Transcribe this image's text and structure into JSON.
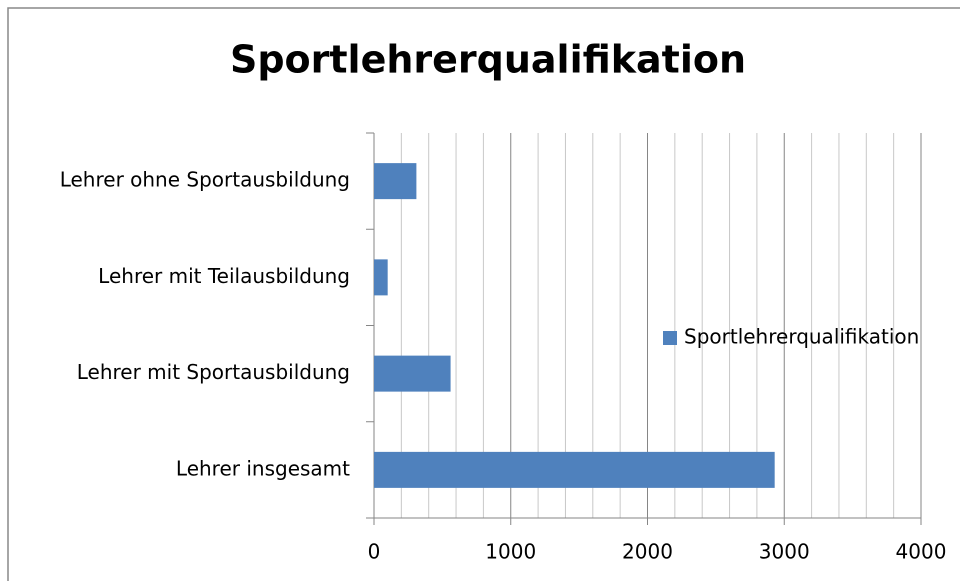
{
  "chart_data": {
    "type": "hbar",
    "title": "Sportlehrerqualifikation",
    "categories": [
      "Lehrer ohne Sportausbildung",
      "Lehrer mit Teilausbildung",
      "Lehrer mit Sportausbildung",
      "Lehrer insgesamt"
    ],
    "series": [
      {
        "name": "Sportlehrerqualifikation",
        "color": "#4f81bd",
        "values": [
          310,
          100,
          560,
          2930
        ]
      }
    ],
    "xlim": [
      0,
      4000
    ],
    "xticks": [
      0,
      1000,
      2000,
      3000,
      4000
    ],
    "xminorticks": [
      200,
      400,
      600,
      800,
      1200,
      1400,
      1600,
      1800,
      2200,
      2400,
      2600,
      2800,
      3200,
      3400,
      3600,
      3800
    ],
    "grid": true,
    "legend": "right"
  }
}
